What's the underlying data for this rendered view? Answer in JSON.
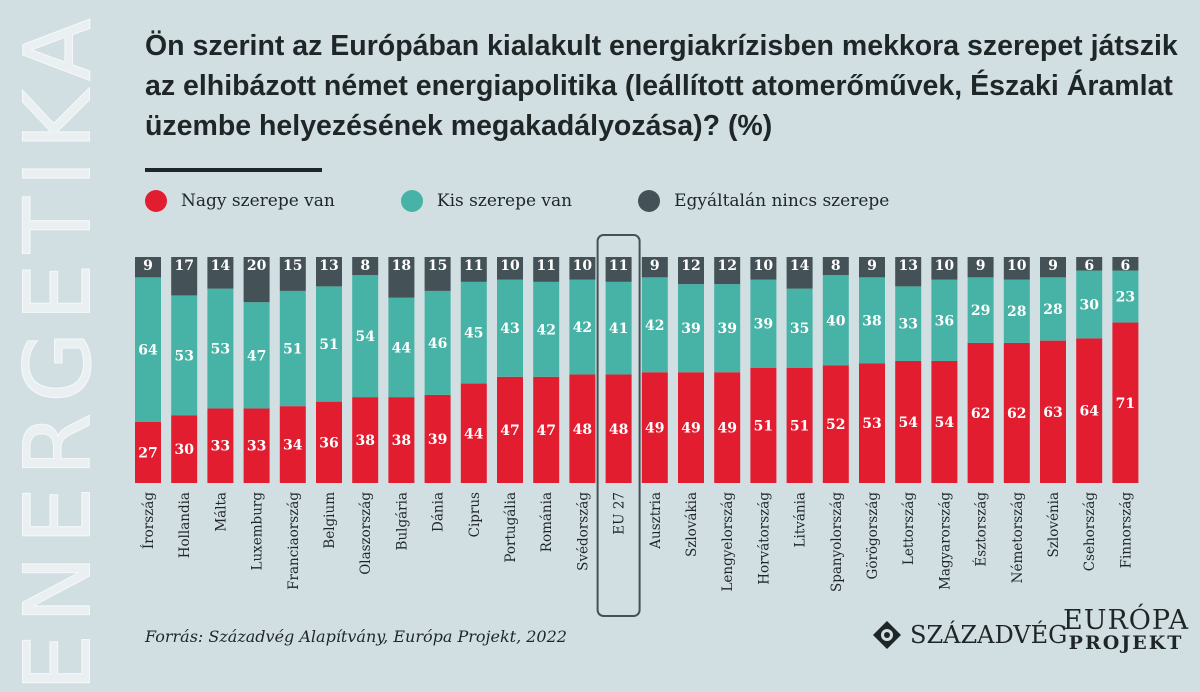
{
  "watermark": "ENERGETIKA",
  "chart_data": {
    "type": "bar",
    "stacked": true,
    "title": "Ön szerint az Európában kialakult energiakrízisben mekkora szerepet játszik az elhibázott német energiapolitika (leállított atomerőművek, Északi Áramlat üzembe helyezésének megakadályozása)? (%)",
    "categories": [
      "Írország",
      "Hollandia",
      "Málta",
      "Luxemburg",
      "Franciaország",
      "Belgium",
      "Olaszország",
      "Bulgária",
      "Dánia",
      "Ciprus",
      "Portugália",
      "Románia",
      "Svédország",
      "EU 27",
      "Ausztria",
      "Szlovákia",
      "Lengyelország",
      "Horvátország",
      "Litvánia",
      "Spanyolország",
      "Görögország",
      "Lettország",
      "Magyarország",
      "Észtország",
      "Németország",
      "Szlovénia",
      "Csehország",
      "Finnország"
    ],
    "highlighted": "EU 27",
    "series": [
      {
        "name": "Nagy szerepe van",
        "color": "#e31d30",
        "values": [
          27,
          30,
          33,
          33,
          34,
          36,
          38,
          38,
          39,
          44,
          47,
          47,
          48,
          48,
          49,
          49,
          49,
          51,
          51,
          52,
          53,
          54,
          54,
          62,
          62,
          63,
          64,
          71
        ]
      },
      {
        "name": "Kis szerepe van",
        "color": "#46b3a6",
        "values": [
          64,
          53,
          53,
          47,
          51,
          51,
          54,
          44,
          46,
          45,
          43,
          42,
          42,
          41,
          42,
          39,
          39,
          39,
          35,
          40,
          38,
          33,
          36,
          29,
          28,
          28,
          30,
          23
        ]
      },
      {
        "name": "Egyáltalán nincs szerepe",
        "color": "#445257",
        "values": [
          9,
          17,
          14,
          20,
          15,
          13,
          8,
          18,
          15,
          11,
          10,
          11,
          10,
          11,
          9,
          12,
          12,
          10,
          14,
          8,
          9,
          13,
          10,
          9,
          10,
          9,
          6,
          6
        ]
      }
    ],
    "ylim": [
      0,
      100
    ],
    "legend": "top",
    "grid": false
  },
  "source": "Forrás: Századvég Alapítvány, Európa Projekt, 2022",
  "logos": {
    "szazadveg": "SZÁZADVÉG",
    "europa": "EURÓPA",
    "projekt": "PROJEKT"
  }
}
